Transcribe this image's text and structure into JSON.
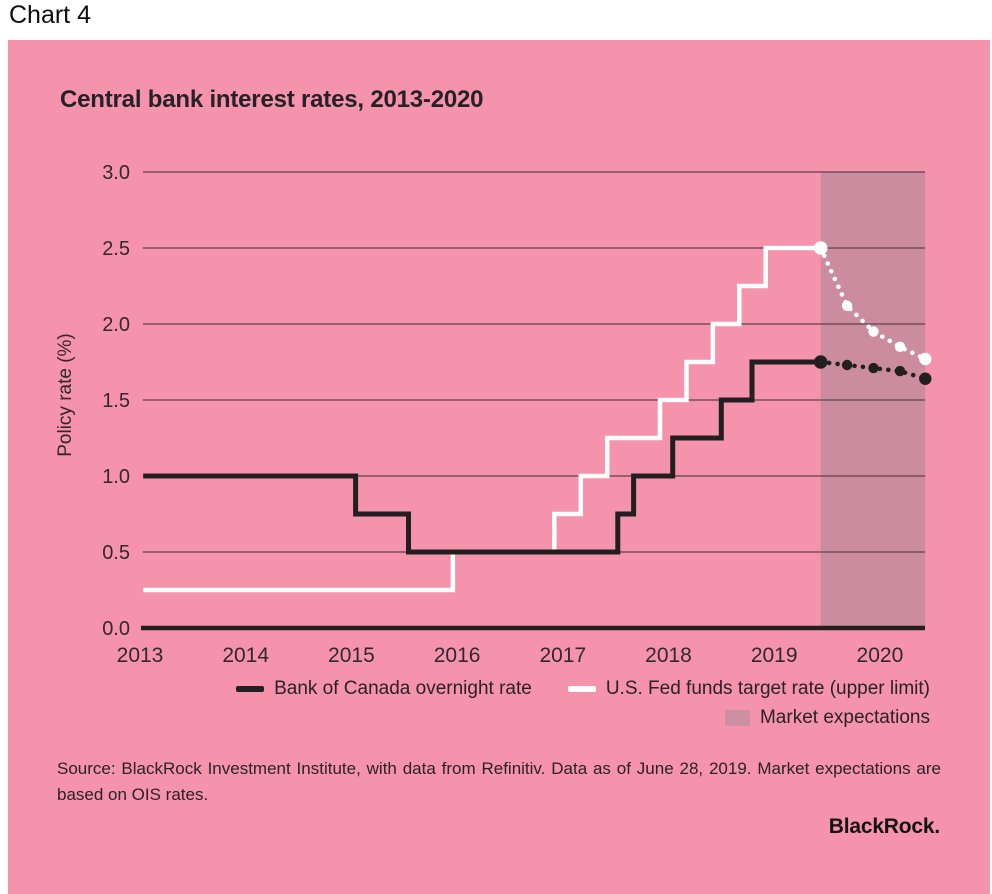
{
  "page": {
    "label": "Chart 4"
  },
  "panel": {
    "title": "Central bank interest rates, 2013-2020",
    "source_text": "Source: BlackRock Investment Institute, with data from Refinitiv. Data as of June 28, 2019. Market expectations are based on OIS rates.",
    "logo_text": "BlackRock."
  },
  "colors": {
    "panel_bg": "#f493ab",
    "expectations_band": "#cb8c9f",
    "legend_area_swatch": "#cd8fa2",
    "gridline": "#5c434e",
    "axis": "#231f20",
    "text_dark": "#33272e",
    "line_black": "#231f20",
    "line_white": "#ffffff"
  },
  "chart_data": {
    "type": "line",
    "title": "Central bank interest rates, 2013-2020",
    "ylabel": "Policy rate (%)",
    "ylim": [
      0,
      3
    ],
    "y_ticks": [
      "3.0",
      "2.5",
      "2.0",
      "1.5",
      "1.0",
      "0.5",
      "0.0"
    ],
    "x_ticks": [
      "2013",
      "2014",
      "2015",
      "2016",
      "2017",
      "2018",
      "2019",
      "2020"
    ],
    "x_domain": [
      2013.03,
      2020.43
    ],
    "grid": true,
    "legend": [
      {
        "label": "Bank of Canada overnight rate",
        "swatch": "line",
        "color": "#231f20"
      },
      {
        "label": "U.S. Fed funds target rate (upper limit)",
        "swatch": "line",
        "color": "#ffffff"
      },
      {
        "label": "Market expectations",
        "swatch": "area",
        "color": "#cd8fa2"
      }
    ],
    "series": [
      {
        "name": "Bank of Canada overnight rate",
        "style": "step-solid",
        "color": "#231f20",
        "points": [
          [
            2013.03,
            1.0
          ],
          [
            2015.04,
            0.75
          ],
          [
            2015.54,
            0.5
          ],
          [
            2017.52,
            0.75
          ],
          [
            2017.67,
            1.0
          ],
          [
            2018.04,
            1.25
          ],
          [
            2018.5,
            1.5
          ],
          [
            2018.79,
            1.75
          ]
        ],
        "end": 2019.44
      },
      {
        "name": "U.S. Fed funds target rate (upper limit)",
        "style": "step-solid",
        "color": "#ffffff",
        "points": [
          [
            2013.03,
            0.25
          ],
          [
            2015.96,
            0.5
          ],
          [
            2016.92,
            0.75
          ],
          [
            2017.17,
            1.0
          ],
          [
            2017.42,
            1.25
          ],
          [
            2017.92,
            1.5
          ],
          [
            2018.17,
            1.75
          ],
          [
            2018.42,
            2.0
          ],
          [
            2018.67,
            2.25
          ],
          [
            2018.92,
            2.5
          ]
        ],
        "end": 2019.44
      }
    ],
    "expectations": {
      "label": "Market expectations",
      "region": [
        2019.44,
        2020.43
      ],
      "series": [
        {
          "name": "U.S. Fed funds market expectations (OIS)",
          "color": "#ffffff",
          "points": [
            [
              2019.44,
              2.5
            ],
            [
              2019.69,
              2.12
            ],
            [
              2019.94,
              1.95
            ],
            [
              2020.19,
              1.85
            ],
            [
              2020.43,
              1.77
            ]
          ]
        },
        {
          "name": "Bank of Canada market expectations (OIS)",
          "color": "#231f20",
          "points": [
            [
              2019.44,
              1.75
            ],
            [
              2019.69,
              1.73
            ],
            [
              2019.94,
              1.71
            ],
            [
              2020.19,
              1.69
            ],
            [
              2020.43,
              1.64
            ]
          ]
        }
      ]
    }
  }
}
